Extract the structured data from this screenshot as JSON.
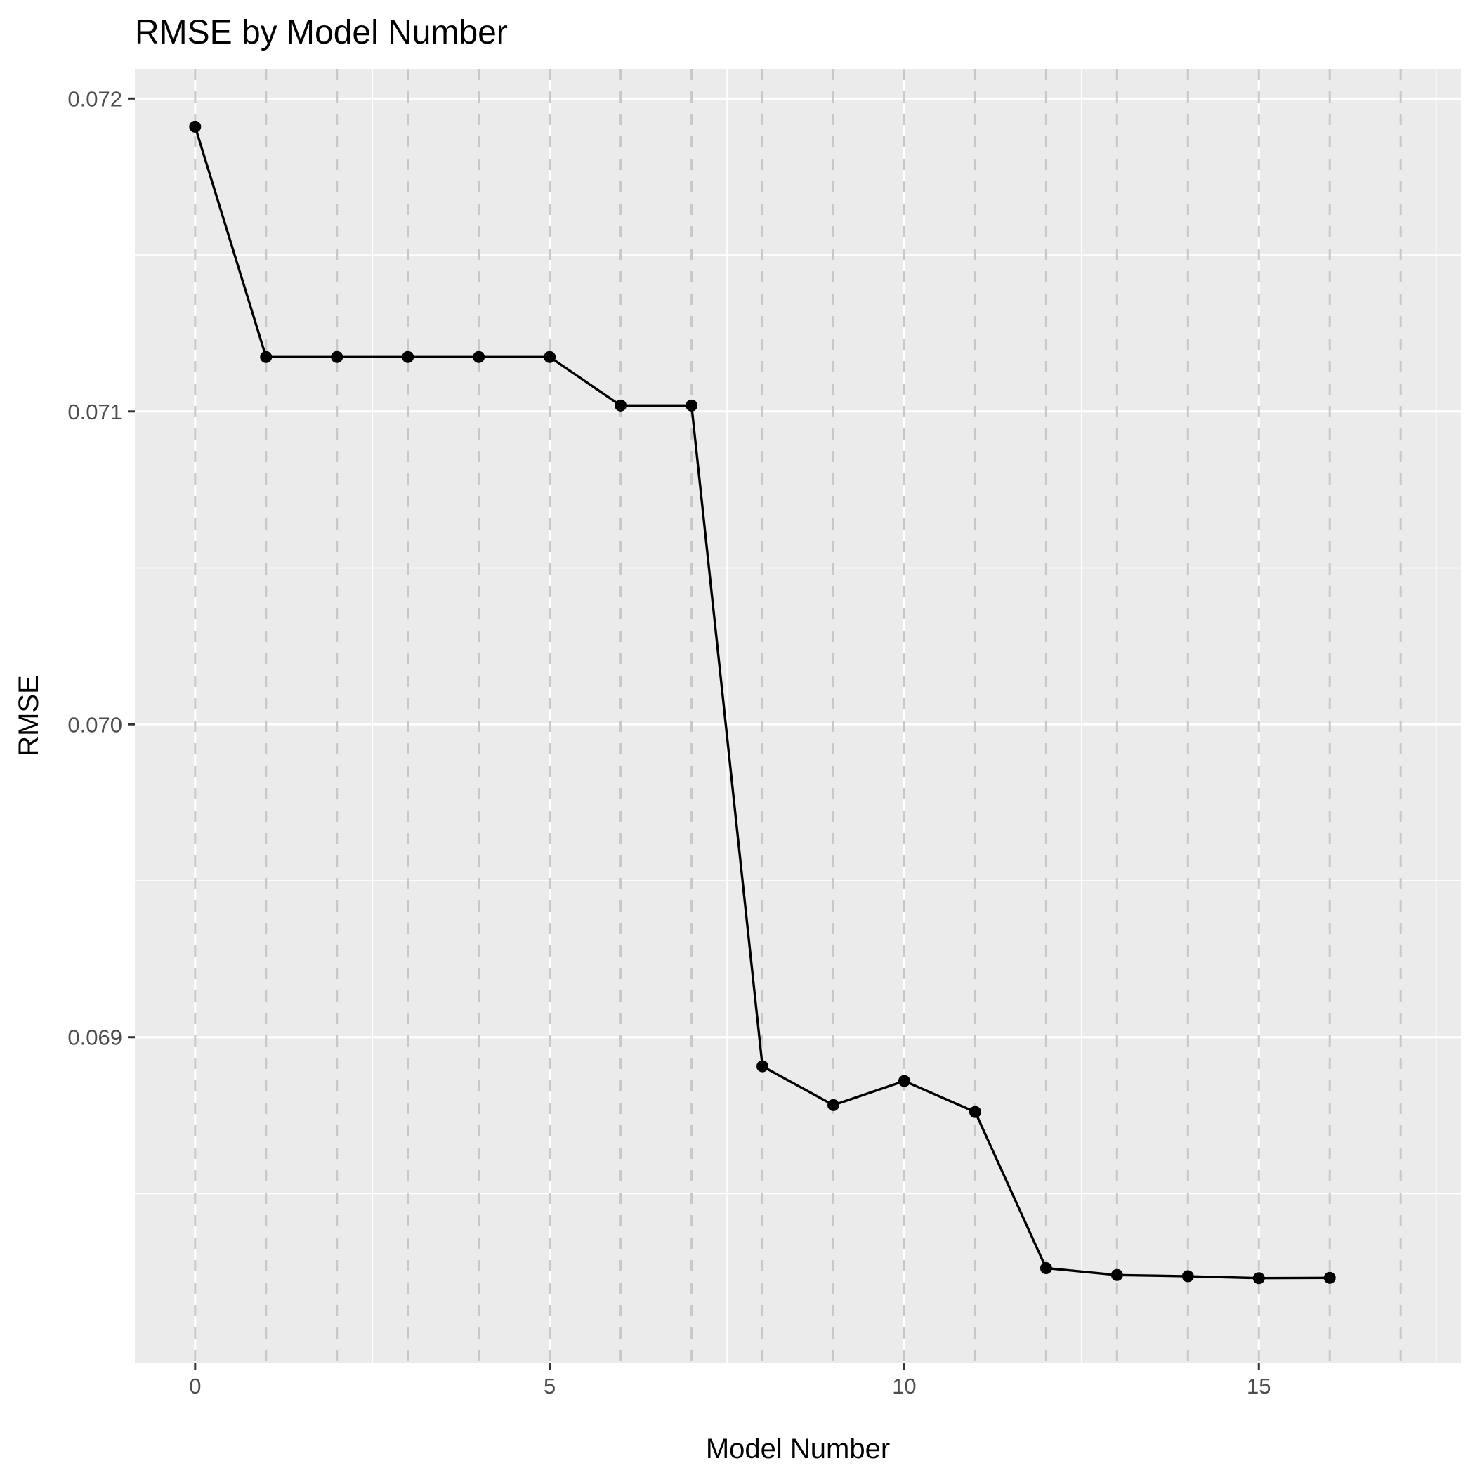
{
  "chart_data": {
    "type": "line",
    "title": "RMSE by Model Number",
    "xlabel": "Model Number",
    "ylabel": "RMSE",
    "x": [
      0,
      1,
      2,
      3,
      4,
      5,
      6,
      7,
      8,
      9,
      10,
      11,
      12,
      13,
      14,
      15,
      16
    ],
    "series": [
      {
        "values": [
          0.07191,
          0.071174,
          0.071174,
          0.071174,
          0.071174,
          0.071174,
          0.071019,
          0.071019,
          0.068907,
          0.068783,
          0.06886,
          0.068761,
          0.068262,
          0.06824,
          0.068236,
          0.06823,
          0.068231
        ],
        "color": "#000000"
      }
    ],
    "xlim": [
      -0.85,
      17.85
    ],
    "ylim": [
      0.06796,
      0.072095
    ],
    "x_ticks": [
      {
        "value": 0,
        "label": "0"
      },
      {
        "value": 5,
        "label": "5"
      },
      {
        "value": 10,
        "label": "10"
      },
      {
        "value": 15,
        "label": "15"
      }
    ],
    "y_ticks": [
      {
        "value": 0.069,
        "label": "0.069"
      },
      {
        "value": 0.07,
        "label": "0.070"
      },
      {
        "value": 0.071,
        "label": "0.071"
      },
      {
        "value": 0.072,
        "label": "0.072"
      }
    ],
    "x_minor_grid": [
      2.5,
      7.5,
      12.5,
      17.5
    ],
    "y_minor_grid": [
      0.0685,
      0.0695,
      0.0705,
      0.0715
    ],
    "dashed_vlines": [
      0,
      1,
      2,
      3,
      4,
      5,
      6,
      7,
      8,
      9,
      10,
      11,
      12,
      13,
      14,
      15,
      16,
      17
    ],
    "grid": true,
    "legend": "none",
    "panel_color": "#ebebeb",
    "grid_color": "#ffffff",
    "dashed_line_color": "#c8c8c8"
  }
}
